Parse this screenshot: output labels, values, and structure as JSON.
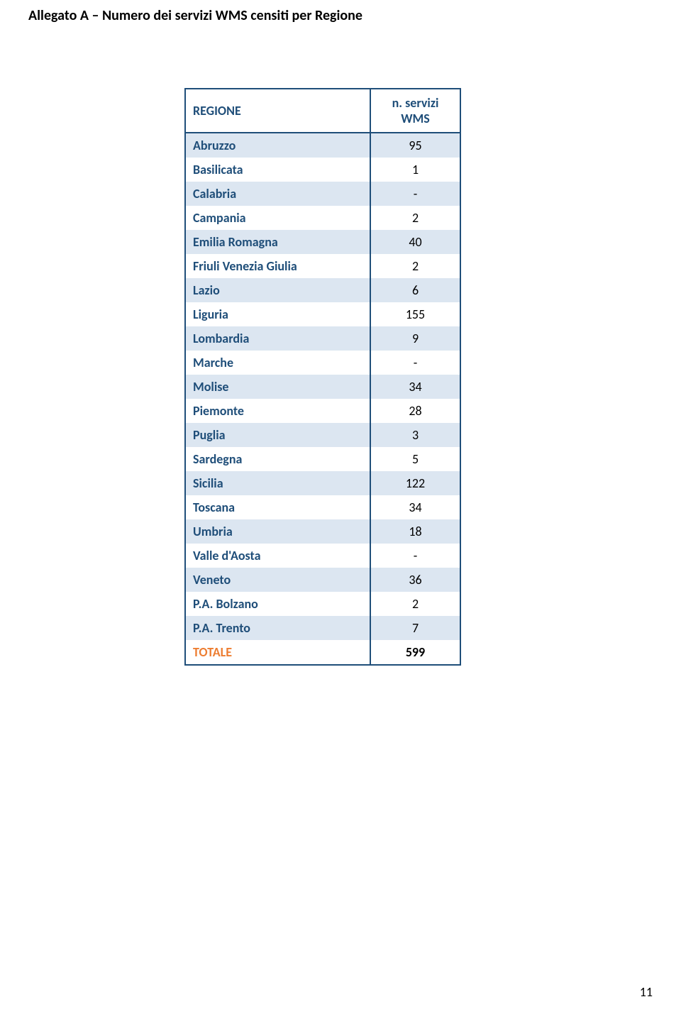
{
  "title": "Allegato A – Numero dei servizi WMS censiti per Regione",
  "table": {
    "headers": {
      "col1": "REGIONE",
      "col2": "n. servizi WMS"
    },
    "rows": [
      {
        "region": "Abruzzo",
        "value": "95",
        "shaded": true
      },
      {
        "region": "Basilicata",
        "value": "1",
        "shaded": false
      },
      {
        "region": "Calabria",
        "value": "-",
        "shaded": true
      },
      {
        "region": "Campania",
        "value": "2",
        "shaded": false
      },
      {
        "region": "Emilia Romagna",
        "value": "40",
        "shaded": true
      },
      {
        "region": "Friuli Venezia Giulia",
        "value": "2",
        "shaded": false
      },
      {
        "region": "Lazio",
        "value": "6",
        "shaded": true
      },
      {
        "region": "Liguria",
        "value": "155",
        "shaded": false
      },
      {
        "region": "Lombardia",
        "value": "9",
        "shaded": true
      },
      {
        "region": "Marche",
        "value": "-",
        "shaded": false
      },
      {
        "region": "Molise",
        "value": "34",
        "shaded": true
      },
      {
        "region": "Piemonte",
        "value": "28",
        "shaded": false
      },
      {
        "region": "Puglia",
        "value": "3",
        "shaded": true
      },
      {
        "region": "Sardegna",
        "value": "5",
        "shaded": false
      },
      {
        "region": "Sicilia",
        "value": "122",
        "shaded": true
      },
      {
        "region": "Toscana",
        "value": "34",
        "shaded": false
      },
      {
        "region": "Umbria",
        "value": "18",
        "shaded": true
      },
      {
        "region": "Valle d'Aosta",
        "value": "-",
        "shaded": false
      },
      {
        "region": "Veneto",
        "value": "36",
        "shaded": true
      },
      {
        "region": "P.A. Bolzano",
        "value": "2",
        "shaded": false
      },
      {
        "region": "P.A. Trento",
        "value": "7",
        "shaded": true
      }
    ],
    "total": {
      "label": "TOTALE",
      "value": "599"
    }
  },
  "pageNumber": "11",
  "colors": {
    "headerText": "#1f4e79",
    "border": "#1f4e79",
    "shadedRow": "#dce6f1",
    "totalLabel": "#ed7d31"
  }
}
